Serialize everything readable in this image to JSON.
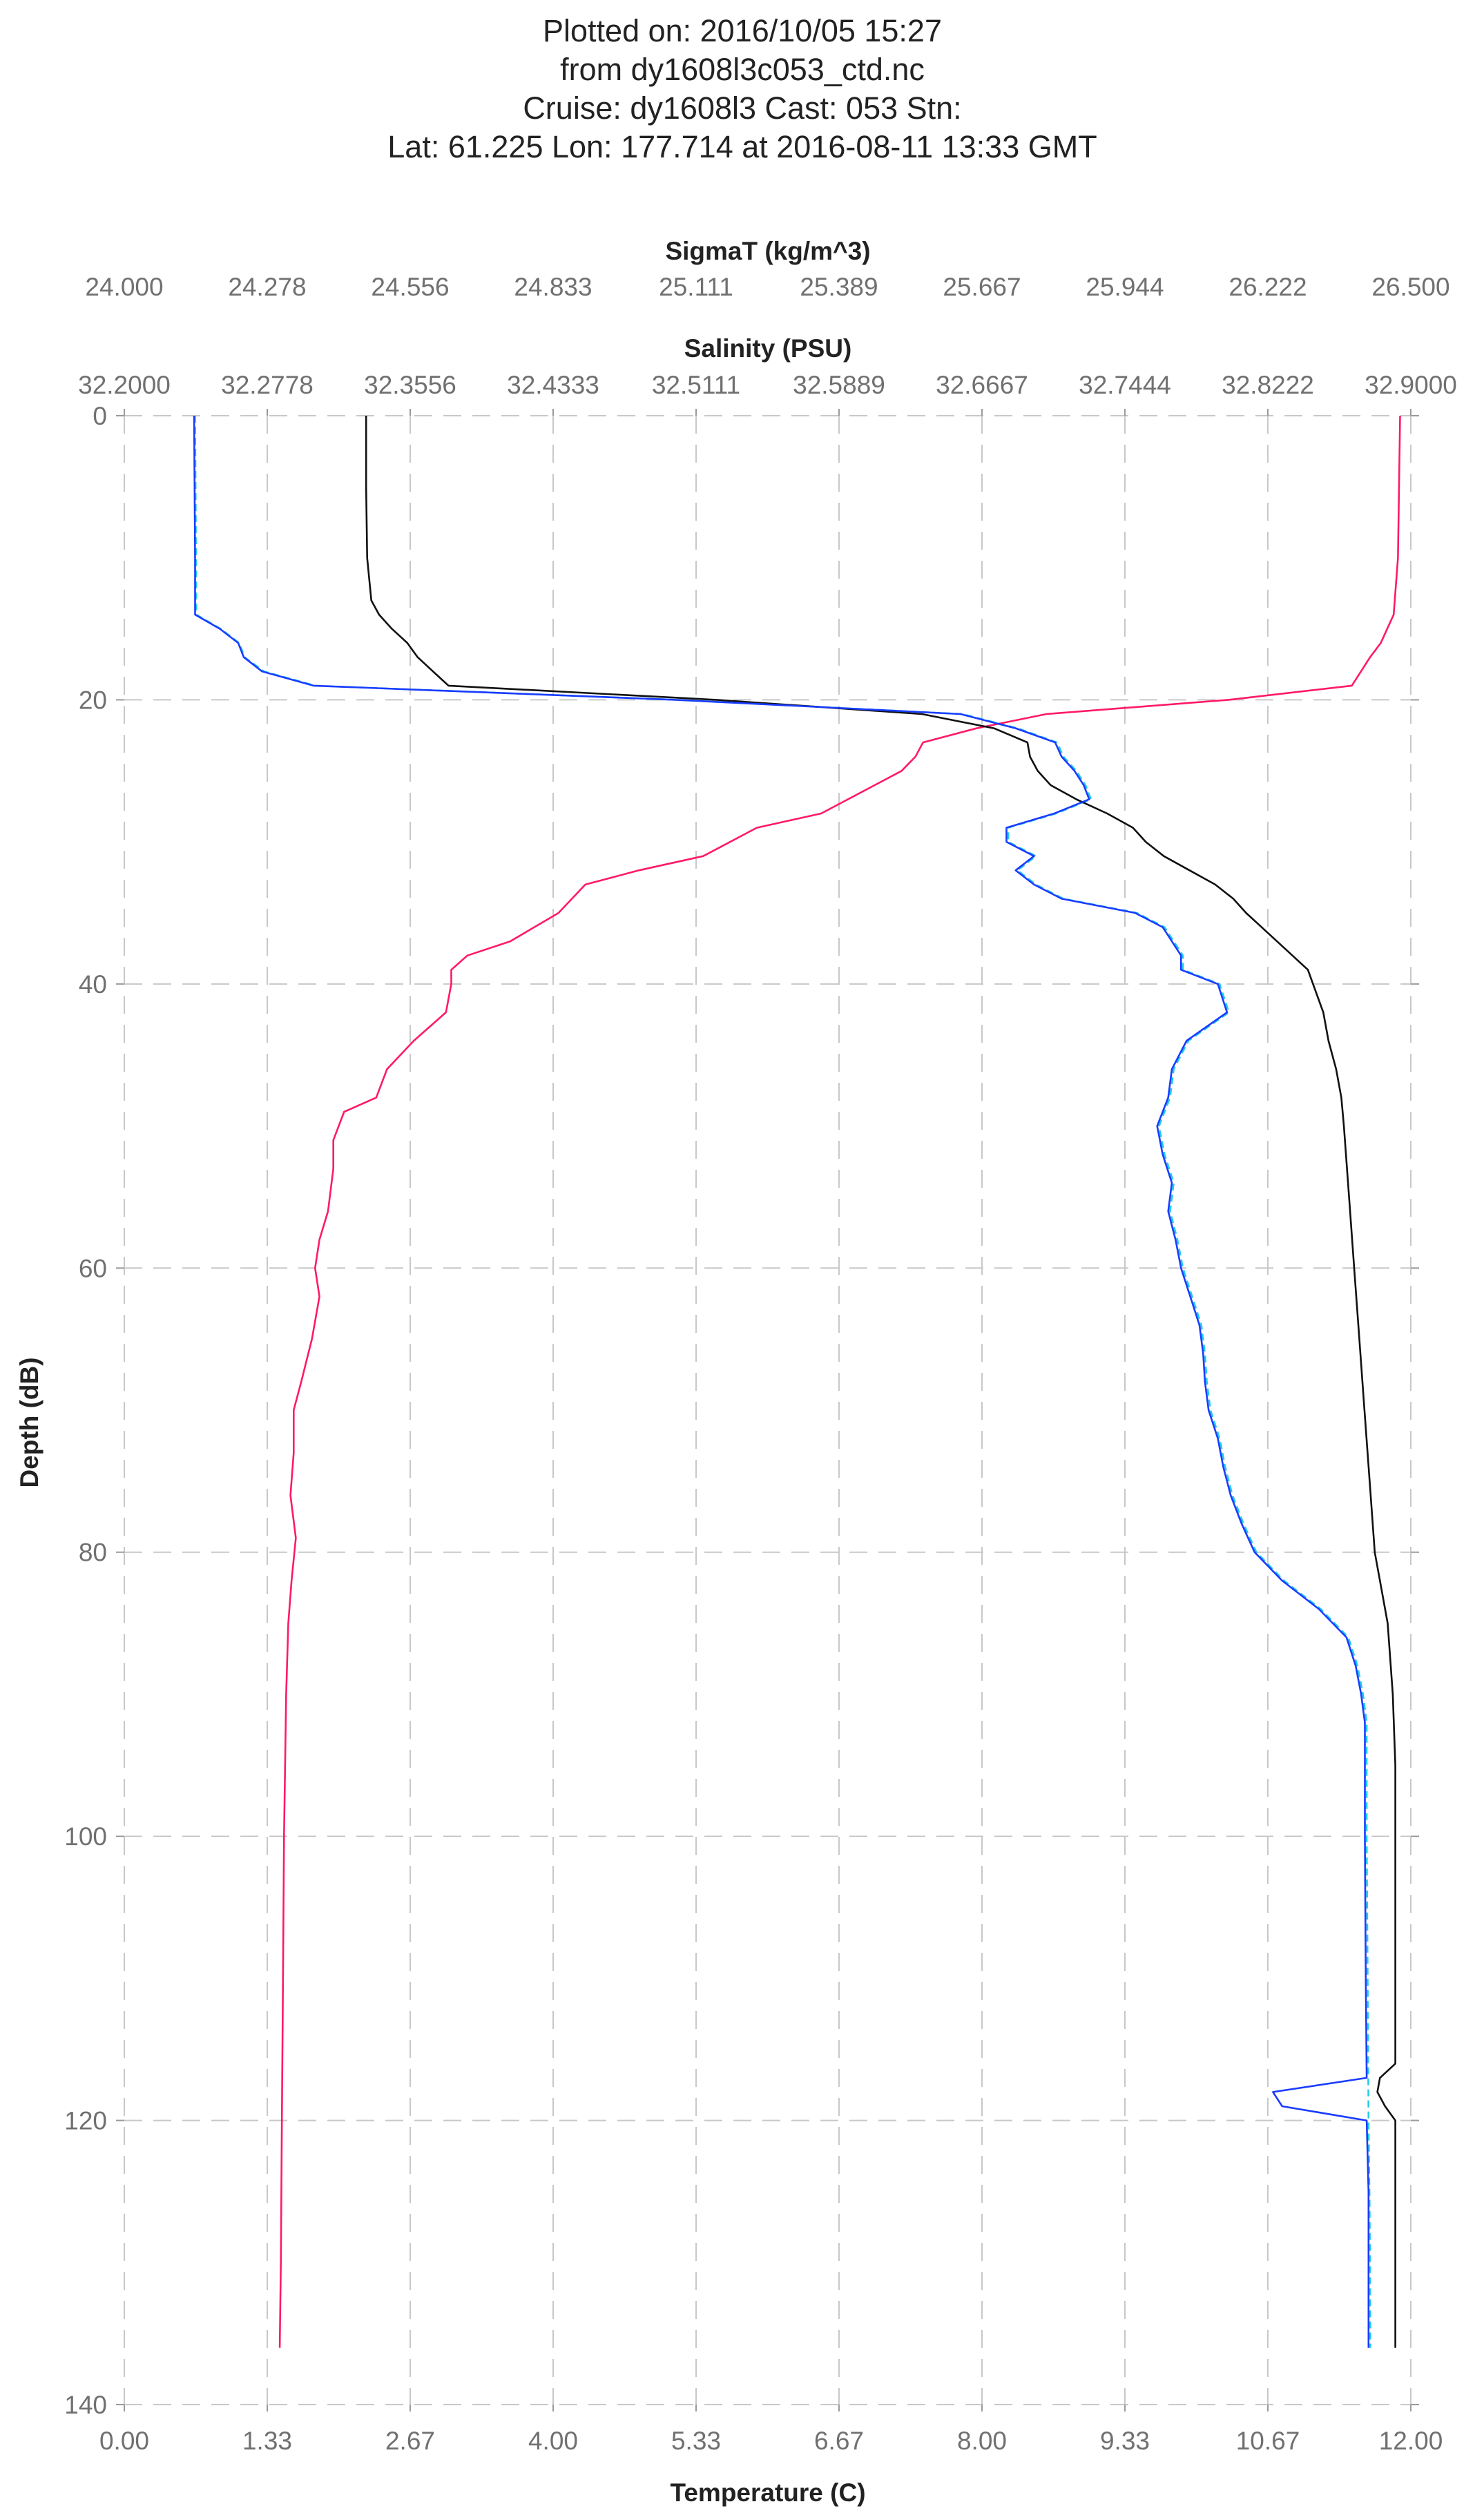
{
  "chart_data": {
    "type": "line",
    "title_lines": [
      "Plotted on: 2016/10/05 15:27",
      "from dy1608l3c053_ctd.nc",
      "Cruise: dy1608l3  Cast: 053  Stn:",
      "Lat: 61.225  Lon: 177.714 at 2016-08-11 13:33 GMT"
    ],
    "ylabel": "Depth (dB)",
    "ylim": [
      0,
      140
    ],
    "y_inverted": true,
    "y_ticks": [
      "0",
      "20",
      "40",
      "60",
      "80",
      "100",
      "120",
      "140"
    ],
    "grid": true,
    "axes": {
      "temperature": {
        "label": "Temperature (C)",
        "position": "bottom",
        "range": [
          0,
          12
        ],
        "ticks": [
          "0.00",
          "1.33",
          "2.67",
          "4.00",
          "5.33",
          "6.67",
          "8.00",
          "9.33",
          "10.67",
          "12.00"
        ]
      },
      "salinity": {
        "label": "Salinity (PSU)",
        "position": "top",
        "range": [
          32.2,
          32.9
        ],
        "ticks": [
          "32.2000",
          "32.2778",
          "32.3556",
          "32.4333",
          "32.5111",
          "32.5889",
          "32.6667",
          "32.7444",
          "32.8222",
          "32.9000"
        ]
      },
      "sigmat": {
        "label": "SigmaT (kg/m^3)",
        "position": "top",
        "range": [
          24.0,
          26.5
        ],
        "ticks": [
          "24.000",
          "24.278",
          "24.556",
          "24.833",
          "25.111",
          "25.389",
          "25.667",
          "25.944",
          "26.222",
          "26.500"
        ]
      }
    },
    "series": [
      {
        "name": "Temperature",
        "axis": "temperature",
        "color": "#ff1a66",
        "depth": [
          0,
          10,
          14,
          16,
          17,
          19,
          20,
          21,
          22,
          23,
          24,
          25,
          26,
          28,
          29,
          31,
          32,
          33,
          35,
          37,
          38,
          39,
          40,
          42,
          44,
          46,
          48,
          49,
          51,
          53,
          56,
          58,
          60,
          62,
          65,
          68,
          70,
          73,
          76,
          79,
          82,
          85,
          90,
          100,
          110,
          120,
          130,
          136
        ],
        "values": [
          11.9,
          11.88,
          11.84,
          11.72,
          11.62,
          11.45,
          10.3,
          8.6,
          7.95,
          7.45,
          7.38,
          7.25,
          7.0,
          6.5,
          5.9,
          5.4,
          4.8,
          4.3,
          4.05,
          3.6,
          3.2,
          3.05,
          3.05,
          3.0,
          2.7,
          2.45,
          2.35,
          2.05,
          1.95,
          1.95,
          1.9,
          1.82,
          1.78,
          1.82,
          1.75,
          1.65,
          1.58,
          1.58,
          1.55,
          1.6,
          1.56,
          1.53,
          1.51,
          1.49,
          1.48,
          1.47,
          1.46,
          1.45
        ]
      },
      {
        "name": "Salinity",
        "axis": "salinity",
        "color": "#1a3cff",
        "depth": [
          0,
          10,
          14,
          15,
          16,
          17,
          18,
          19,
          20,
          21,
          22,
          23,
          24,
          25,
          26,
          27,
          28,
          29,
          30,
          31,
          32,
          33,
          34,
          35,
          36,
          37,
          38,
          39,
          40,
          42,
          44,
          46,
          48,
          50,
          52,
          54,
          56,
          58,
          60,
          62,
          64,
          66,
          68,
          70,
          72,
          74,
          76,
          78,
          80,
          82,
          84,
          86,
          88,
          90,
          92,
          100,
          110,
          117,
          118,
          119,
          120,
          125,
          130,
          136
        ],
        "values": [
          32.238,
          32.2385,
          32.2385,
          32.252,
          32.262,
          32.265,
          32.275,
          32.303,
          32.5,
          32.655,
          32.685,
          32.7065,
          32.71,
          32.717,
          32.722,
          32.725,
          32.706,
          32.68,
          32.68,
          32.695,
          32.685,
          32.695,
          32.71,
          32.75,
          32.765,
          32.77,
          32.775,
          32.775,
          32.795,
          32.8,
          32.778,
          32.77,
          32.768,
          32.762,
          32.765,
          32.77,
          32.768,
          32.772,
          32.775,
          32.78,
          32.785,
          32.787,
          32.788,
          32.79,
          32.795,
          32.798,
          32.802,
          32.808,
          32.815,
          32.83,
          32.85,
          32.865,
          32.87,
          32.873,
          32.875,
          32.875,
          32.8755,
          32.876,
          32.825,
          32.83,
          32.876,
          32.877,
          32.877,
          32.877
        ]
      },
      {
        "name": "Salinity (secondary)",
        "axis": "salinity",
        "color": "#22ccee",
        "depth": [
          0,
          10,
          14,
          15,
          16,
          17,
          18,
          19,
          20,
          21,
          22,
          23,
          24,
          25,
          26,
          27,
          28,
          29,
          30,
          31,
          32,
          33,
          34,
          35,
          36,
          37,
          38,
          39,
          40,
          42,
          44,
          46,
          48,
          50,
          52,
          54,
          56,
          58,
          60,
          62,
          64,
          66,
          68,
          70,
          72,
          74,
          76,
          78,
          80,
          82,
          84,
          86,
          88,
          90,
          92,
          100,
          110,
          120,
          125,
          130,
          136
        ],
        "values": [
          32.2385,
          32.239,
          32.2392,
          32.2525,
          32.2625,
          32.2655,
          32.276,
          32.304,
          32.501,
          32.656,
          32.686,
          32.7075,
          32.711,
          32.718,
          32.723,
          32.726,
          32.707,
          32.681,
          32.681,
          32.696,
          32.686,
          32.696,
          32.711,
          32.751,
          32.766,
          32.771,
          32.776,
          32.776,
          32.796,
          32.801,
          32.779,
          32.771,
          32.769,
          32.763,
          32.766,
          32.771,
          32.769,
          32.773,
          32.776,
          32.781,
          32.786,
          32.788,
          32.789,
          32.791,
          32.796,
          32.799,
          32.803,
          32.809,
          32.816,
          32.831,
          32.851,
          32.866,
          32.871,
          32.874,
          32.876,
          32.876,
          32.8765,
          32.877,
          32.8775,
          32.8778,
          32.878
        ]
      },
      {
        "name": "SigmaT",
        "axis": "sigmat",
        "color": "#111111",
        "depth": [
          0,
          5,
          10,
          13,
          14,
          15,
          16,
          17,
          18,
          19,
          20,
          21,
          22,
          23,
          24,
          25,
          26,
          27,
          28,
          29,
          30,
          31,
          32,
          33,
          34,
          35,
          36,
          37,
          38,
          39,
          40,
          42,
          44,
          46,
          48,
          50,
          55,
          60,
          65,
          70,
          75,
          80,
          82,
          85,
          90,
          95,
          100,
          110,
          116,
          117,
          118,
          119,
          120,
          125,
          130,
          136
        ],
        "values": [
          24.47,
          24.47,
          24.472,
          24.48,
          24.495,
          24.52,
          24.55,
          24.57,
          24.6,
          24.63,
          25.15,
          25.55,
          25.69,
          25.755,
          25.76,
          25.775,
          25.8,
          25.85,
          25.91,
          25.96,
          25.985,
          26.02,
          26.07,
          26.12,
          26.155,
          26.18,
          26.21,
          26.24,
          26.27,
          26.3,
          26.31,
          26.33,
          26.34,
          26.355,
          26.365,
          26.37,
          26.38,
          26.39,
          26.4,
          26.41,
          26.42,
          26.43,
          26.44,
          26.455,
          26.465,
          26.47,
          26.47,
          26.47,
          26.47,
          26.44,
          26.435,
          26.45,
          26.47,
          26.47,
          26.47,
          26.47
        ]
      }
    ]
  }
}
